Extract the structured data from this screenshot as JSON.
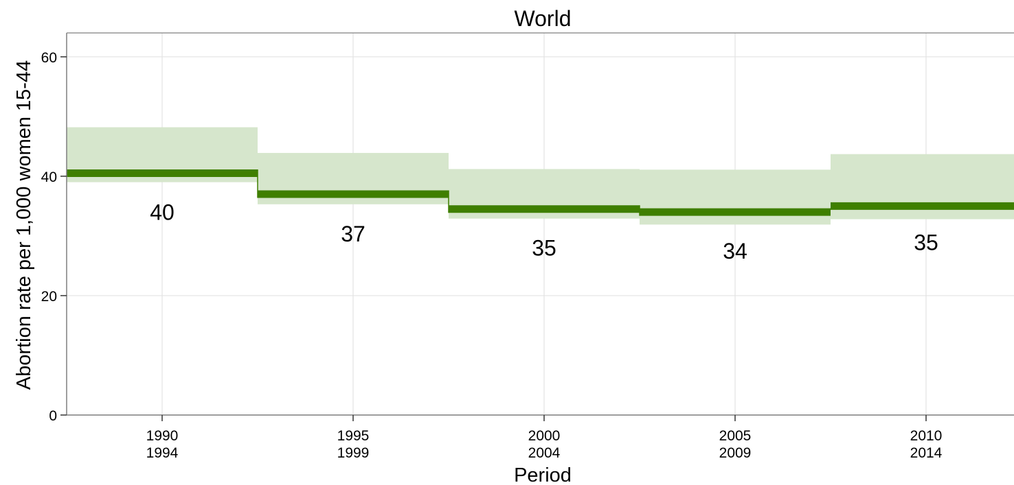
{
  "chart_data": {
    "type": "line",
    "title": "World",
    "xlabel": "Period",
    "ylabel": "Abortion rate per 1,000 women 15-44",
    "ylim": [
      0,
      64
    ],
    "yticks": [
      0,
      20,
      40,
      60
    ],
    "ytick_labels": [
      "0",
      "20",
      "40",
      "60"
    ],
    "grid": true,
    "legend": "none",
    "categories": [
      {
        "line1": "1990",
        "line2": "1994"
      },
      {
        "line1": "1995",
        "line2": "1999"
      },
      {
        "line1": "2000",
        "line2": "2004"
      },
      {
        "line1": "2005",
        "line2": "2009"
      },
      {
        "line1": "2010",
        "line2": "2014"
      }
    ],
    "values": [
      40.5,
      37.0,
      34.5,
      34.0,
      35.0
    ],
    "data_labels": [
      "40",
      "37",
      "35",
      "34",
      "35"
    ],
    "lower": [
      39.0,
      35.3,
      32.9,
      31.9,
      32.8
    ],
    "upper": [
      48.2,
      43.9,
      41.2,
      41.1,
      43.7
    ],
    "line_color": "#3f7f00",
    "band_color": "#d6e6cc"
  }
}
